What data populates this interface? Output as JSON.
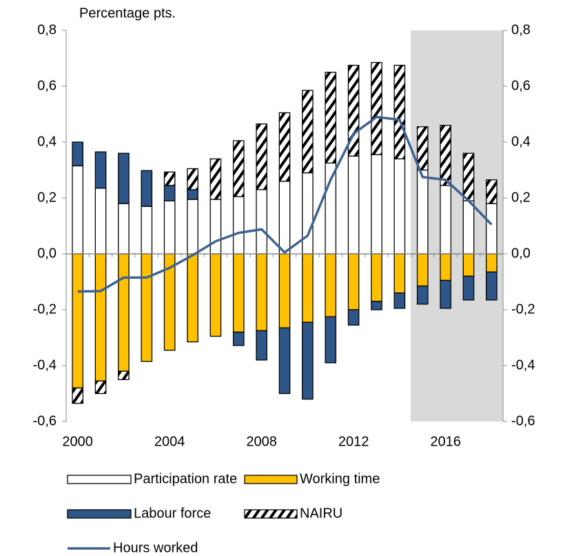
{
  "chart_data": {
    "type": "bar",
    "title": "Percentage pts.",
    "categories": [
      "2000",
      null,
      null,
      null,
      "2004",
      null,
      null,
      null,
      "2008",
      null,
      null,
      null,
      "2012",
      null,
      null,
      null,
      "2016",
      null,
      null
    ],
    "series": [
      {
        "name": "Participation rate",
        "color": "#ffffff",
        "values": [
          0.315,
          0.235,
          0.18,
          0.17,
          0.19,
          0.195,
          0.195,
          0.205,
          0.23,
          0.26,
          0.29,
          0.325,
          0.35,
          0.355,
          0.34,
          0.3,
          0.245,
          0.19,
          0.18
        ]
      },
      {
        "name": "Working time",
        "color": "#ffc000",
        "values": [
          -0.48,
          -0.455,
          -0.42,
          -0.385,
          -0.345,
          -0.315,
          -0.295,
          -0.28,
          -0.275,
          -0.265,
          -0.245,
          -0.225,
          -0.2,
          -0.17,
          -0.14,
          -0.115,
          -0.095,
          -0.08,
          -0.065
        ]
      },
      {
        "name": "Labour force",
        "color": "#2e5689",
        "values": [
          0.085,
          0.13,
          0.18,
          0.128,
          0.055,
          0.035,
          null,
          -0.048,
          -0.105,
          -0.235,
          -0.275,
          -0.165,
          -0.055,
          -0.03,
          -0.055,
          -0.065,
          -0.1,
          -0.085,
          -0.1
        ]
      },
      {
        "name": "NAIRU",
        "color": "#000000",
        "pattern": "diagonal",
        "values": [
          -0.055,
          -0.045,
          -0.03,
          null,
          0.048,
          0.075,
          0.145,
          0.2,
          0.235,
          0.245,
          0.295,
          0.325,
          0.325,
          0.33,
          0.335,
          0.155,
          0.215,
          0.17,
          0.085
        ]
      },
      {
        "name": "Hours worked",
        "type": "line",
        "color": "#3e6390",
        "values": [
          -0.135,
          -0.133,
          -0.085,
          -0.085,
          -0.05,
          -0.005,
          0.045,
          0.075,
          0.088,
          0.005,
          0.065,
          0.265,
          0.43,
          0.49,
          0.48,
          0.275,
          0.265,
          0.19,
          0.105
        ]
      }
    ],
    "ylim": [
      -0.6,
      0.8
    ],
    "yticks": [
      {
        "value": -0.6,
        "label": "-0,6"
      },
      {
        "value": -0.4,
        "label": "-0,4"
      },
      {
        "value": -0.2,
        "label": "-0,2"
      },
      {
        "value": 0,
        "label": "0,0"
      },
      {
        "value": 0.2,
        "label": "0,2"
      },
      {
        "value": 0.4,
        "label": "0,4"
      },
      {
        "value": 0.6,
        "label": "0,6"
      },
      {
        "value": 0.8,
        "label": "0,8"
      }
    ],
    "y2lim": [
      -0.6,
      0.8
    ],
    "y2ticks": [
      {
        "value": -0.6,
        "label": "-0,6"
      },
      {
        "value": -0.4,
        "label": "-0,4"
      },
      {
        "value": -0.2,
        "label": "-0,2"
      },
      {
        "value": 0,
        "label": "0,0"
      },
      {
        "value": 0.2,
        "label": "0,2"
      },
      {
        "value": 0.4,
        "label": "0,4"
      },
      {
        "value": 0.6,
        "label": "0,6"
      },
      {
        "value": 0.8,
        "label": "0,8"
      }
    ]
  }
}
